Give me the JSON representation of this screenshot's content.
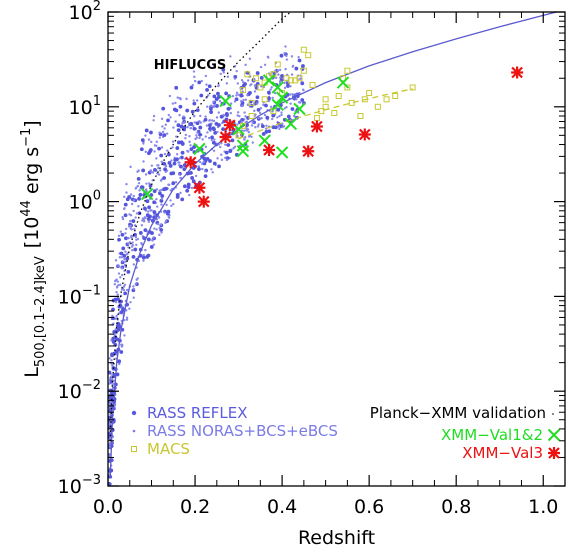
{
  "chart_data": {
    "type": "scatter",
    "xlabel": "Redshift",
    "ylabel_main": "L",
    "ylabel_sub": "500,[0.1–2.4]keV",
    "ylabel_units": "[10",
    "ylabel_units_exp": "44",
    "ylabel_units_tail": " erg s",
    "ylabel_units_tail_exp": "−1",
    "ylabel_units_close": "]",
    "xlim": [
      0.0,
      1.05
    ],
    "ylim": [
      0.001,
      100
    ],
    "yscale": "log",
    "x_ticks": [
      0.0,
      0.2,
      0.4,
      0.6,
      0.8,
      1.0
    ],
    "x_tick_labels": [
      "0.0",
      "0.2",
      "0.4",
      "0.6",
      "0.8",
      "1.0"
    ],
    "y_ticks": [
      0.001,
      0.01,
      0.1,
      1,
      10,
      100
    ],
    "y_tick_labels": [
      {
        "base": "10",
        "exp": "−3"
      },
      {
        "base": "10",
        "exp": "−2"
      },
      {
        "base": "10",
        "exp": "−1"
      },
      {
        "base": "10",
        "exp": "0"
      },
      {
        "base": "10",
        "exp": "1"
      },
      {
        "base": "10",
        "exp": "2"
      }
    ],
    "annotation": "HIFLUCGS",
    "legend": {
      "left": [
        {
          "label": "RASS  REFLEX",
          "color": "#5a5adf",
          "marker": "bigdot"
        },
        {
          "label": "RASS  NORAS+BCS+eBCS",
          "color": "#7b7be6",
          "marker": "smalldot"
        },
        {
          "label": "MACS",
          "color": "#c8c832",
          "marker": "square"
        }
      ],
      "right_title": "Planck−XMM validation",
      "right": [
        {
          "label": "XMM−Val1&2",
          "color": "#22dd22",
          "marker": "x"
        },
        {
          "label": "XMM−Val3",
          "color": "#ee1111",
          "marker": "asterisk"
        }
      ]
    },
    "colors": {
      "rass": "#6a6ae2",
      "macs": "#c8c832",
      "val12": "#22dd22",
      "val3": "#ee1111",
      "model": "#5a5ad0"
    },
    "series": [
      {
        "name": "XMM−Val1&2",
        "marker": "x",
        "points": [
          [
            0.09,
            1.2
          ],
          [
            0.21,
            3.6
          ],
          [
            0.27,
            11.5
          ],
          [
            0.3,
            5.8
          ],
          [
            0.31,
            3.9
          ],
          [
            0.31,
            3.4
          ],
          [
            0.36,
            4.4
          ],
          [
            0.37,
            19.0
          ],
          [
            0.39,
            16.0
          ],
          [
            0.39,
            10.5
          ],
          [
            0.4,
            12.5
          ],
          [
            0.4,
            3.3
          ],
          [
            0.42,
            6.6
          ],
          [
            0.44,
            9.5
          ],
          [
            0.54,
            18.0
          ]
        ]
      },
      {
        "name": "XMM−Val3",
        "marker": "asterisk",
        "points": [
          [
            0.19,
            2.6
          ],
          [
            0.21,
            1.4
          ],
          [
            0.22,
            1.0
          ],
          [
            0.27,
            4.8
          ],
          [
            0.28,
            6.4
          ],
          [
            0.37,
            3.5
          ],
          [
            0.46,
            3.4
          ],
          [
            0.48,
            6.2
          ],
          [
            0.59,
            5.1
          ],
          [
            0.94,
            23.0
          ]
        ]
      },
      {
        "name": "MACS",
        "marker": "square",
        "points": [
          [
            0.3,
            5.0
          ],
          [
            0.31,
            6.3
          ],
          [
            0.31,
            15.0
          ],
          [
            0.32,
            22.0
          ],
          [
            0.33,
            11.0
          ],
          [
            0.33,
            8.0
          ],
          [
            0.34,
            20.0
          ],
          [
            0.35,
            16.0
          ],
          [
            0.36,
            12.0
          ],
          [
            0.36,
            18.0
          ],
          [
            0.37,
            21.0
          ],
          [
            0.38,
            22.0
          ],
          [
            0.38,
            9.0
          ],
          [
            0.39,
            28.0
          ],
          [
            0.4,
            14.0
          ],
          [
            0.41,
            20.0
          ],
          [
            0.42,
            19.0
          ],
          [
            0.43,
            19.0
          ],
          [
            0.44,
            20.0
          ],
          [
            0.45,
            24.0
          ],
          [
            0.45,
            40.0
          ],
          [
            0.46,
            35.0
          ],
          [
            0.47,
            17.0
          ],
          [
            0.48,
            7.6
          ],
          [
            0.49,
            9.0
          ],
          [
            0.5,
            10.0
          ],
          [
            0.5,
            12.0
          ],
          [
            0.52,
            8.6
          ],
          [
            0.53,
            13.0
          ],
          [
            0.54,
            20.0
          ],
          [
            0.55,
            16.0
          ],
          [
            0.55,
            24.0
          ],
          [
            0.56,
            11.0
          ],
          [
            0.58,
            8.0
          ],
          [
            0.59,
            12.0
          ],
          [
            0.6,
            14.0
          ],
          [
            0.62,
            10.0
          ],
          [
            0.64,
            12.0
          ],
          [
            0.66,
            13.0
          ],
          [
            0.7,
            16.0
          ]
        ]
      }
    ],
    "rass_cloud": {
      "count": 1100,
      "seed": 7,
      "description_points": "points lying on and above the flux limit curve, z 0.003–0.45"
    },
    "model_curve": {
      "name": "model",
      "style": "solid",
      "color": "#5a5ad0",
      "points": [
        [
          0.005,
          0.0012
        ],
        [
          0.01,
          0.005
        ],
        [
          0.02,
          0.02
        ],
        [
          0.03,
          0.045
        ],
        [
          0.05,
          0.13
        ],
        [
          0.075,
          0.3
        ],
        [
          0.1,
          0.56
        ],
        [
          0.15,
          1.35
        ],
        [
          0.2,
          2.5
        ],
        [
          0.25,
          4.0
        ],
        [
          0.3,
          5.8
        ],
        [
          0.35,
          8.2
        ],
        [
          0.4,
          11.0
        ],
        [
          0.5,
          18.0
        ],
        [
          0.6,
          27.0
        ],
        [
          0.7,
          38.0
        ],
        [
          0.8,
          52.0
        ],
        [
          0.9,
          70.0
        ],
        [
          1.0,
          92.0
        ],
        [
          1.03,
          100.0
        ]
      ]
    },
    "hiflucgs_curve": {
      "style": "dotted",
      "color": "#000000",
      "points": [
        [
          0.005,
          0.003
        ],
        [
          0.01,
          0.012
        ],
        [
          0.02,
          0.05
        ],
        [
          0.03,
          0.11
        ],
        [
          0.05,
          0.33
        ],
        [
          0.075,
          0.78
        ],
        [
          0.1,
          1.5
        ],
        [
          0.13,
          2.8
        ],
        [
          0.16,
          4.8
        ],
        [
          0.2,
          9.0
        ],
        [
          0.25,
          17.0
        ],
        [
          0.3,
          30.0
        ],
        [
          0.35,
          50.0
        ],
        [
          0.4,
          85.0
        ],
        [
          0.42,
          100.0
        ]
      ]
    },
    "macs_curve": {
      "style": "dashed",
      "color": "#c8c832",
      "points": [
        [
          0.3,
          4.6
        ],
        [
          0.35,
          5.6
        ],
        [
          0.4,
          6.8
        ],
        [
          0.45,
          8.0
        ],
        [
          0.5,
          9.3
        ],
        [
          0.55,
          10.7
        ],
        [
          0.6,
          12.2
        ],
        [
          0.65,
          13.8
        ],
        [
          0.7,
          15.5
        ]
      ]
    }
  }
}
